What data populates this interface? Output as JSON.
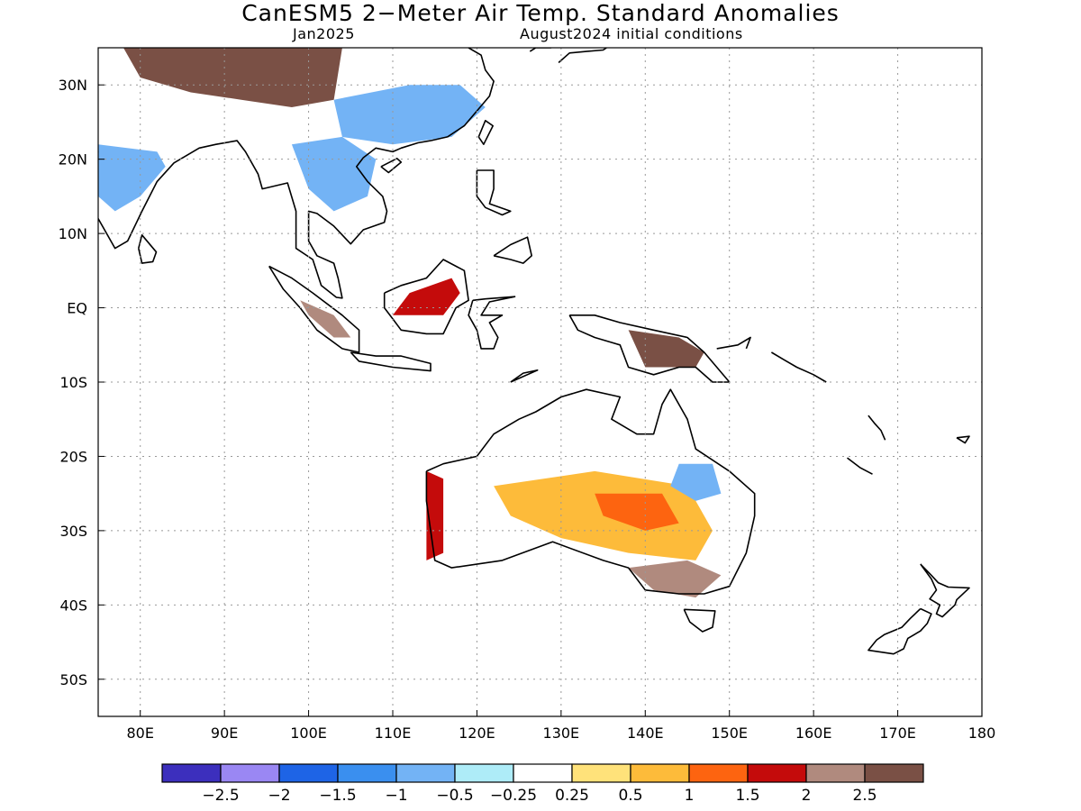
{
  "title": "CanESM5 2−Meter Air Temp. Standard Anomalies",
  "subtitle_left": "Jan2025",
  "subtitle_right": "August2024 initial conditions",
  "map": {
    "lon_range": [
      75,
      180
    ],
    "lat_range": [
      -55,
      35
    ],
    "lon_ticks": [
      {
        "value": 80,
        "label": "80E"
      },
      {
        "value": 90,
        "label": "90E"
      },
      {
        "value": 100,
        "label": "100E"
      },
      {
        "value": 110,
        "label": "110E"
      },
      {
        "value": 120,
        "label": "120E"
      },
      {
        "value": 130,
        "label": "130E"
      },
      {
        "value": 140,
        "label": "140E"
      },
      {
        "value": 150,
        "label": "150E"
      },
      {
        "value": 160,
        "label": "160E"
      },
      {
        "value": 170,
        "label": "170E"
      },
      {
        "value": 180,
        "label": "180"
      }
    ],
    "lat_ticks": [
      {
        "value": 30,
        "label": "30N"
      },
      {
        "value": 20,
        "label": "20N"
      },
      {
        "value": 10,
        "label": "10N"
      },
      {
        "value": 0,
        "label": "EQ"
      },
      {
        "value": -10,
        "label": "10S"
      },
      {
        "value": -20,
        "label": "20S"
      },
      {
        "value": -30,
        "label": "30S"
      },
      {
        "value": -40,
        "label": "40S"
      },
      {
        "value": -50,
        "label": "50S"
      }
    ],
    "grid": "dotted"
  },
  "colorbar": {
    "colors": [
      "#3c2fbd",
      "#9a87f3",
      "#1e64e6",
      "#3a8fef",
      "#73b3f5",
      "#aeecf8",
      "#ffffff",
      "#ffe27a",
      "#fdbb3a",
      "#fd6410",
      "#c40b0b",
      "#b08a7e",
      "#7a5045"
    ],
    "labels": [
      "−2.5",
      "−2",
      "−1.5",
      "−1",
      "−0.5",
      "−0.25",
      "0.25",
      "0.5",
      "1",
      "1.5",
      "2",
      "2.5"
    ]
  },
  "anomaly_regions": [
    {
      "name": "tibet",
      "level": 12,
      "points": [
        [
          78,
          35
        ],
        [
          104,
          35
        ],
        [
          103,
          28
        ],
        [
          98,
          27
        ],
        [
          92,
          28
        ],
        [
          86,
          29
        ],
        [
          80,
          31
        ]
      ]
    },
    {
      "name": "china-south-cold",
      "level": 4,
      "points": [
        [
          103,
          28
        ],
        [
          112,
          30
        ],
        [
          118,
          30
        ],
        [
          121,
          27
        ],
        [
          117,
          23
        ],
        [
          110,
          22
        ],
        [
          104,
          23
        ]
      ]
    },
    {
      "name": "indochina-cold",
      "level": 4,
      "points": [
        [
          98,
          22
        ],
        [
          104,
          23
        ],
        [
          108,
          20
        ],
        [
          107,
          15
        ],
        [
          103,
          13
        ],
        [
          100,
          16
        ]
      ]
    },
    {
      "name": "india-cold",
      "level": 4,
      "points": [
        [
          75,
          22
        ],
        [
          82,
          21
        ],
        [
          83,
          19
        ],
        [
          80,
          15
        ],
        [
          77,
          13
        ],
        [
          75,
          15
        ]
      ]
    },
    {
      "name": "australia-warm",
      "level": 8,
      "points": [
        [
          122,
          -24
        ],
        [
          134,
          -22
        ],
        [
          145,
          -24
        ],
        [
          148,
          -30
        ],
        [
          146,
          -34
        ],
        [
          138,
          -33
        ],
        [
          130,
          -31
        ],
        [
          124,
          -28
        ]
      ]
    },
    {
      "name": "australia-center-hot",
      "level": 9,
      "points": [
        [
          134,
          -25
        ],
        [
          142,
          -25
        ],
        [
          144,
          -29
        ],
        [
          140,
          -30
        ],
        [
          135,
          -28
        ]
      ]
    },
    {
      "name": "australia-queensland-cold",
      "level": 4,
      "points": [
        [
          144,
          -21
        ],
        [
          148,
          -21
        ],
        [
          149,
          -25
        ],
        [
          146,
          -26
        ],
        [
          143,
          -24
        ]
      ]
    },
    {
      "name": "australia-southeast-brown",
      "level": 11,
      "points": [
        [
          138,
          -35
        ],
        [
          145,
          -34
        ],
        [
          149,
          -36
        ],
        [
          146,
          -39
        ],
        [
          141,
          -38
        ]
      ]
    },
    {
      "name": "borneo-red",
      "level": 10,
      "points": [
        [
          110,
          -1
        ],
        [
          116,
          -1
        ],
        [
          118,
          2
        ],
        [
          117,
          4
        ],
        [
          112,
          2
        ]
      ]
    },
    {
      "name": "new-guinea-brown",
      "level": 12,
      "points": [
        [
          138,
          -3
        ],
        [
          144,
          -4
        ],
        [
          147,
          -6
        ],
        [
          146,
          -8
        ],
        [
          140,
          -8
        ]
      ]
    },
    {
      "name": "sumatra-brown",
      "level": 11,
      "points": [
        [
          99,
          1
        ],
        [
          103,
          -1
        ],
        [
          105,
          -4
        ],
        [
          103,
          -4
        ],
        [
          100,
          -1
        ]
      ]
    },
    {
      "name": "west-australia-red",
      "level": 10,
      "points": [
        [
          114,
          -22
        ],
        [
          116,
          -23
        ],
        [
          116,
          -33
        ],
        [
          114,
          -34
        ],
        [
          114,
          -27
        ]
      ]
    }
  ]
}
